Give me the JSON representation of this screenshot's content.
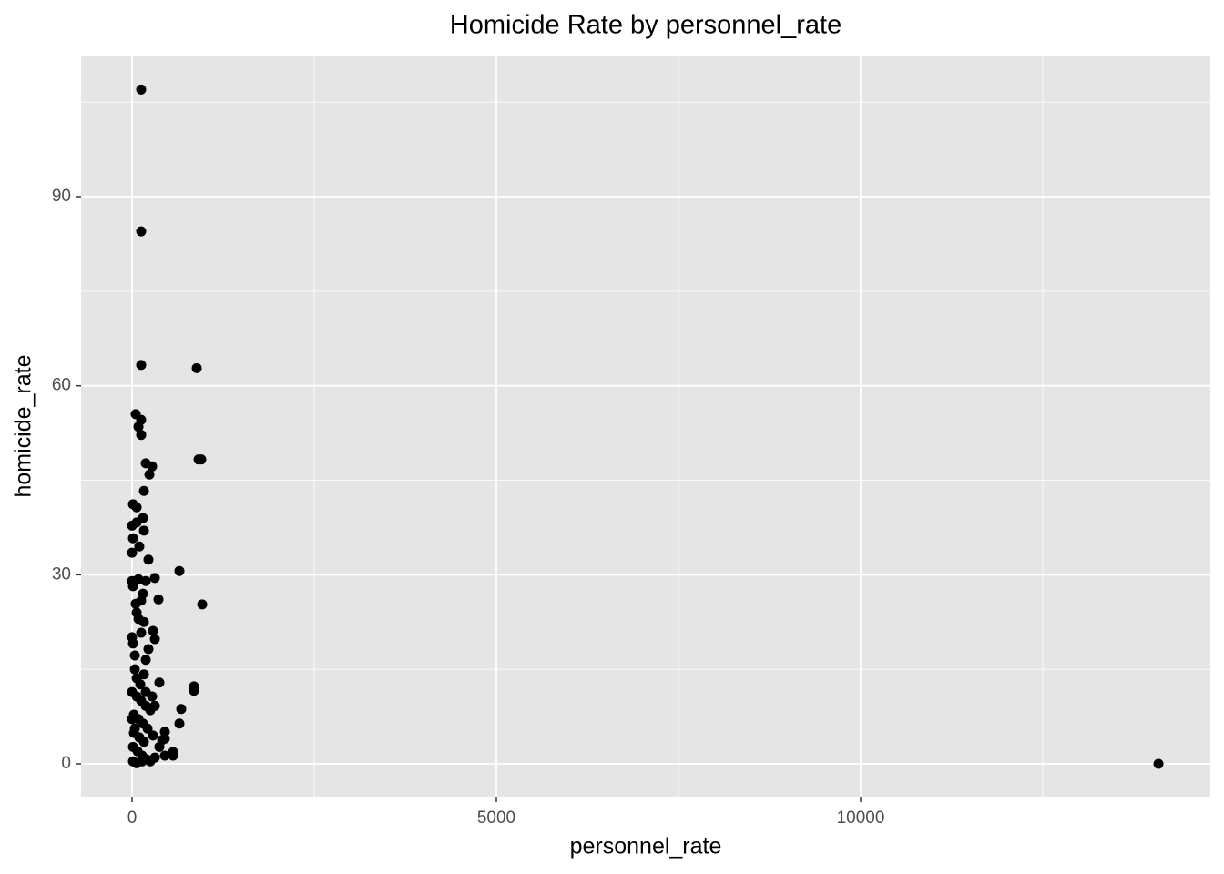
{
  "chart_data": {
    "type": "scatter",
    "title": "Homicide Rate by personnel_rate",
    "x_label": "personnel_rate",
    "y_label": "homicide_rate",
    "xlim": [
      -700,
      14800
    ],
    "ylim": [
      -5.2,
      112.4
    ],
    "xticks": [
      0,
      5000,
      10000
    ],
    "yticks": [
      0,
      30,
      60,
      90
    ],
    "x_minor_grid": [
      2500,
      7500,
      12500
    ],
    "y_minor_grid": [
      15,
      45,
      75,
      105
    ],
    "grid": true,
    "color": "#000000",
    "panel_color": "#e5e5e5",
    "x": [
      125,
      125,
      125,
      888,
      50,
      125,
      88,
      125,
      913,
      950,
      188,
      275,
      238,
      163,
      13,
      63,
      150,
      0,
      63,
      163,
      13,
      100,
      0,
      225,
      650,
      313,
      0,
      88,
      188,
      13,
      363,
      125,
      50,
      963,
      150,
      63,
      88,
      163,
      288,
      0,
      125,
      313,
      13,
      225,
      38,
      188,
      375,
      850,
      850,
      38,
      163,
      675,
      313,
      650,
      450,
      450,
      413,
      563,
      563,
      450,
      14088,
      0,
      63,
      125,
      188,
      250,
      25,
      88,
      150,
      213,
      25,
      100,
      163,
      13,
      75,
      138,
      200,
      13,
      63,
      313,
      375,
      288,
      188,
      275,
      63,
      0,
      138,
      250,
      38,
      113
    ],
    "y": [
      107.0,
      84.5,
      63.3,
      62.8,
      55.5,
      54.6,
      53.5,
      52.2,
      48.3,
      48.3,
      47.7,
      47.2,
      45.9,
      43.3,
      41.2,
      40.7,
      39.0,
      37.8,
      38.3,
      37.0,
      35.8,
      34.5,
      33.5,
      32.4,
      30.6,
      29.5,
      29.0,
      29.3,
      29.0,
      28.2,
      26.1,
      25.9,
      25.4,
      25.3,
      27.0,
      24.0,
      23.0,
      22.5,
      21.1,
      20.1,
      20.8,
      19.8,
      19.1,
      18.2,
      17.2,
      16.5,
      12.9,
      12.3,
      11.6,
      15.0,
      14.2,
      8.7,
      9.2,
      6.4,
      5.1,
      4.0,
      3.8,
      1.9,
      1.3,
      1.3,
      0.0,
      11.4,
      10.7,
      10.0,
      9.2,
      8.5,
      7.8,
      7.1,
      6.4,
      5.6,
      4.9,
      4.2,
      3.5,
      2.7,
      2.0,
      1.3,
      0.7,
      0.4,
      0.1,
      1.0,
      2.7,
      4.5,
      11.4,
      10.7,
      13.6,
      7.1,
      0.4,
      0.4,
      5.6,
      12.6
    ]
  }
}
